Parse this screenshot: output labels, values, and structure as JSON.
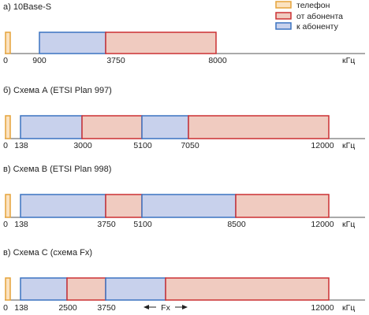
{
  "legend": [
    {
      "key": "phone",
      "label": "телефон",
      "fill": "#fbe2bf",
      "stroke": "#e5a33a"
    },
    {
      "key": "up",
      "label": "от абонента",
      "fill": "#f0cbc0",
      "stroke": "#cc3033"
    },
    {
      "key": "down",
      "label": "к абоненту",
      "fill": "#c8d1ec",
      "stroke": "#3b73c1"
    }
  ],
  "unit": "кГц",
  "panels": [
    {
      "title": "а) 10Base-S",
      "ticks": [
        "0",
        "900",
        "3750",
        "8000"
      ],
      "bands": [
        {
          "type": "down",
          "from": 900,
          "to": 3750
        },
        {
          "type": "up",
          "from": 3750,
          "to": 8000
        }
      ]
    },
    {
      "title": "б) Схема А (ETSI Plan 997)",
      "ticks": [
        "0",
        "138",
        "3000",
        "5100",
        "7050",
        "12000"
      ],
      "bands": [
        {
          "type": "down",
          "from": 138,
          "to": 3000
        },
        {
          "type": "up",
          "from": 3000,
          "to": 5100
        },
        {
          "type": "down",
          "from": 5100,
          "to": 7050
        },
        {
          "type": "up",
          "from": 7050,
          "to": 12000
        }
      ]
    },
    {
      "title": "в) Схема В (ETSI Plan 998)",
      "ticks": [
        "0",
        "138",
        "3750",
        "5100",
        "8500",
        "12000"
      ],
      "bands": [
        {
          "type": "down",
          "from": 138,
          "to": 3750
        },
        {
          "type": "up",
          "from": 3750,
          "to": 5100
        },
        {
          "type": "down",
          "from": 5100,
          "to": 8500
        },
        {
          "type": "up",
          "from": 8500,
          "to": 12000
        }
      ]
    },
    {
      "title": "в) Схема С (схема Fx)",
      "ticks": [
        "0",
        "138",
        "2500",
        "3750",
        "12000"
      ],
      "annotation": "Fx",
      "bands": [
        {
          "type": "down",
          "from": 138,
          "to": 2500
        },
        {
          "type": "up",
          "from": 2500,
          "to": 3750
        },
        {
          "type": "down",
          "from": 3750,
          "to": 5800
        },
        {
          "type": "up",
          "from": 5800,
          "to": 12000
        }
      ]
    }
  ]
}
